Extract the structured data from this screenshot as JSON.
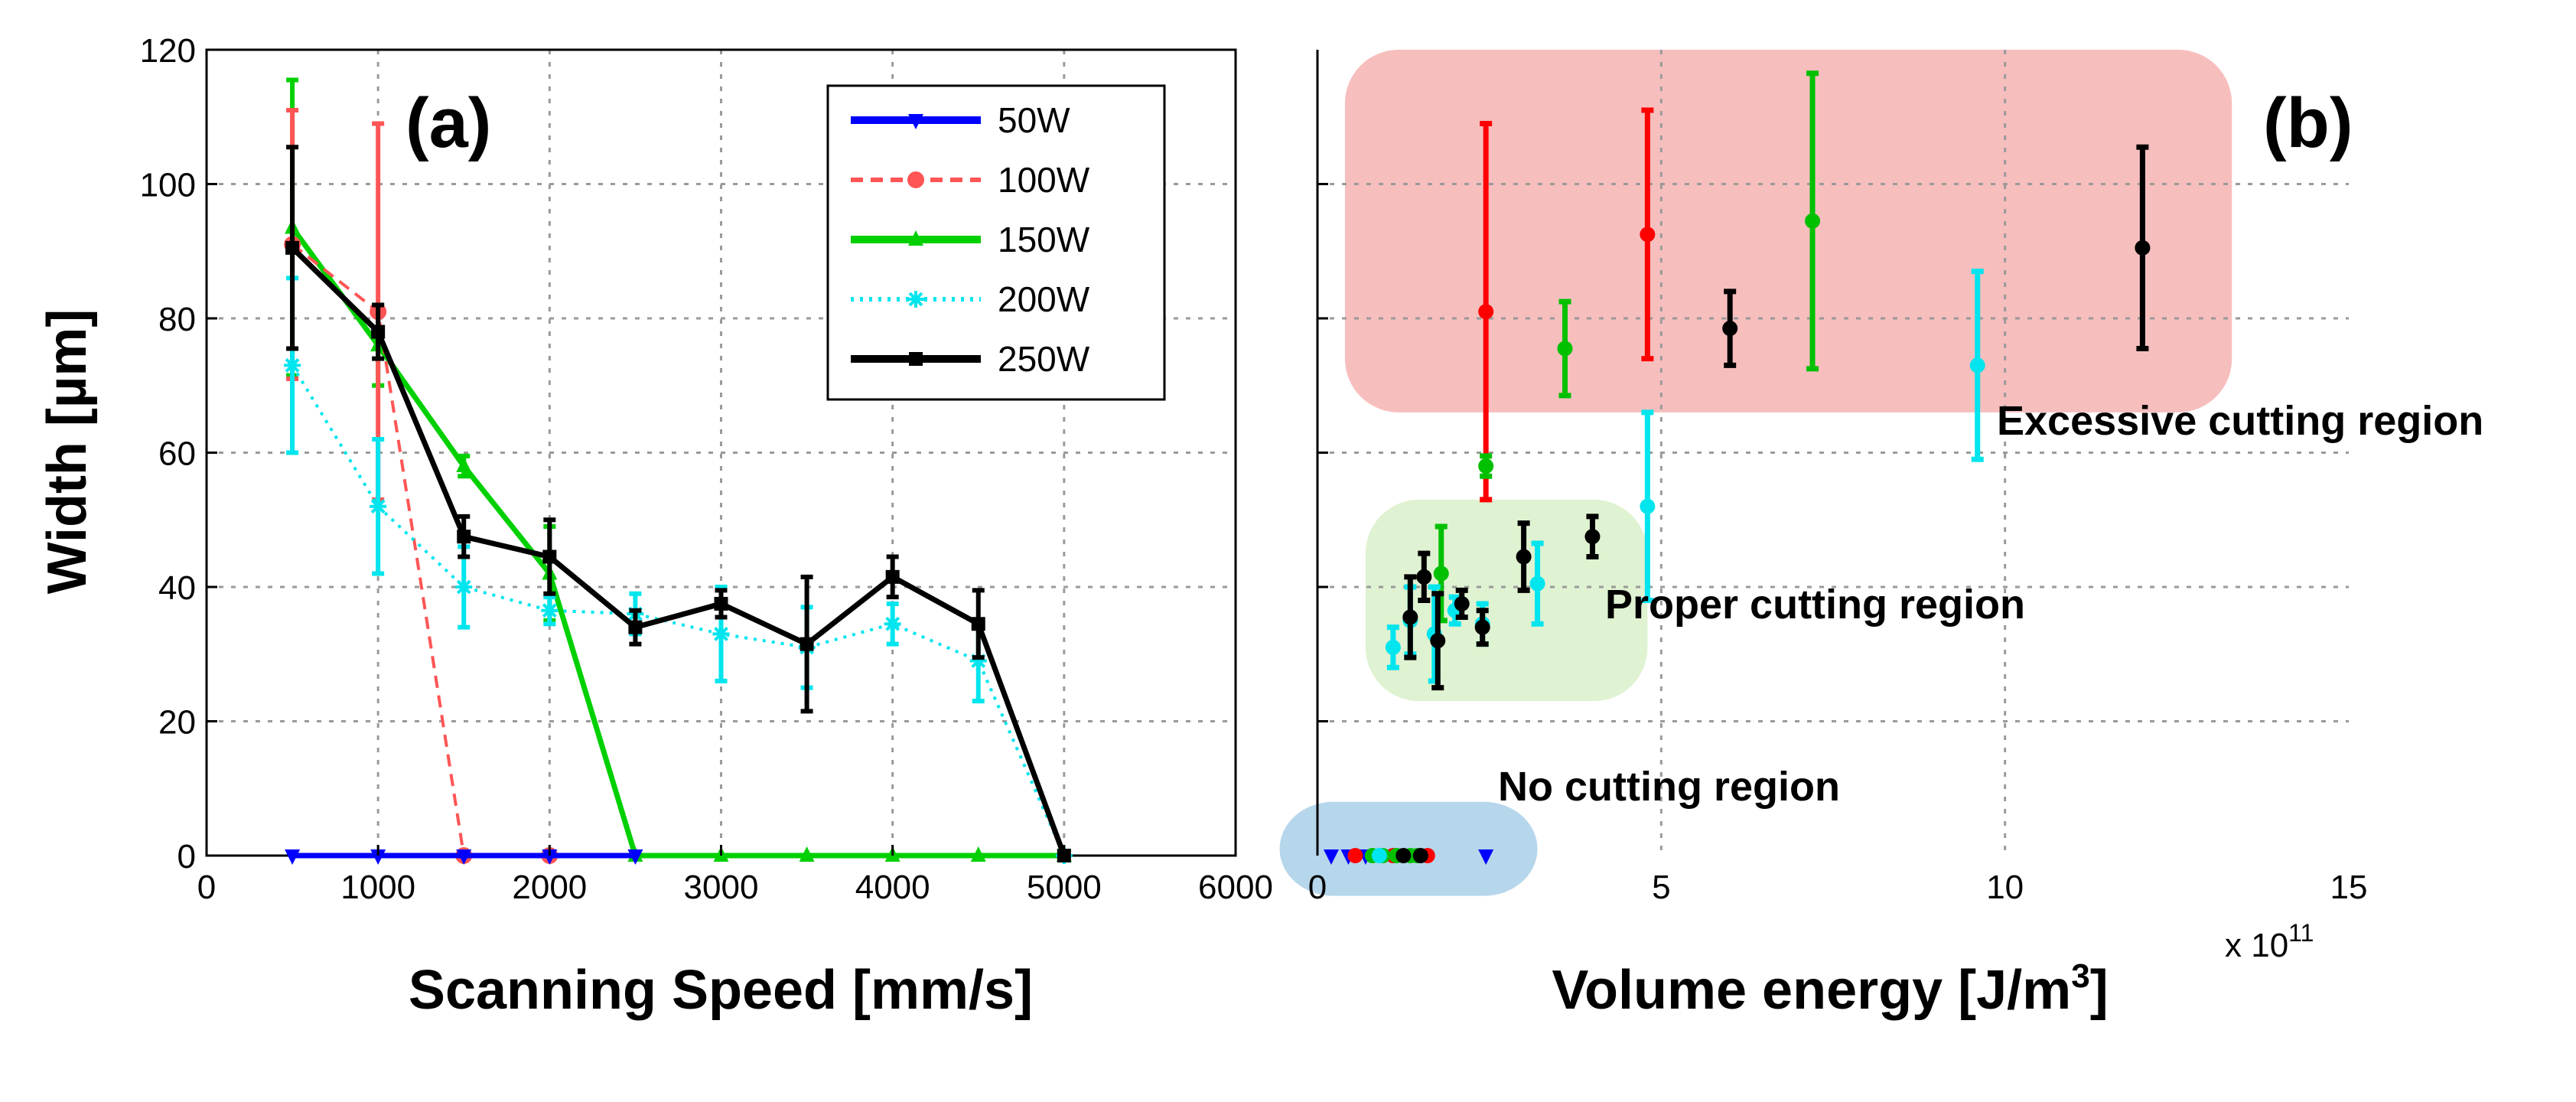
{
  "chart_data": [
    {
      "panel": "(a)",
      "type": "line",
      "xlabel": "Scanning Speed [mm/s]",
      "ylabel": "Width [µm]",
      "xlim": [
        0,
        6000
      ],
      "ylim": [
        0,
        120
      ],
      "xticks": [
        "0",
        "1000",
        "2000",
        "3000",
        "4000",
        "5000",
        "6000"
      ],
      "yticks": [
        "0",
        "20",
        "40",
        "60",
        "80",
        "100",
        "120"
      ],
      "grid": true,
      "legend": "top-right",
      "series": [
        {
          "name": "50W",
          "color": "#0000ff",
          "style": "solid",
          "marker": "triangle-down",
          "x": [
            500,
            1000,
            1500,
            2000,
            2500
          ],
          "y": [
            0,
            0,
            0,
            0,
            0
          ],
          "err": [
            0,
            0,
            0,
            0,
            0
          ]
        },
        {
          "name": "100W",
          "color": "#ff5555",
          "style": "dashed",
          "marker": "circle",
          "x": [
            500,
            1000,
            1500,
            2000
          ],
          "y": [
            91,
            81,
            0,
            0
          ],
          "err": [
            20,
            28,
            0,
            0
          ]
        },
        {
          "name": "150W",
          "color": "#00d000",
          "style": "solid",
          "marker": "triangle-up",
          "x": [
            500,
            1000,
            1500,
            2000,
            2500,
            3000,
            3500,
            4000,
            4500,
            5000
          ],
          "y": [
            93.5,
            76,
            58,
            42,
            0,
            0,
            0,
            0,
            0,
            0
          ],
          "err": [
            22,
            6,
            1.5,
            7,
            0,
            0,
            0,
            0,
            0,
            0
          ]
        },
        {
          "name": "200W",
          "color": "#00e5ee",
          "style": "dotted",
          "marker": "asterisk",
          "x": [
            500,
            1000,
            1500,
            2000,
            2500,
            3000,
            3500,
            4000,
            4500,
            5000
          ],
          "y": [
            73,
            52,
            40,
            36.5,
            36,
            33,
            31,
            34.5,
            29,
            0
          ],
          "err": [
            13,
            10,
            6,
            2,
            3,
            7,
            6,
            3,
            6,
            0
          ]
        },
        {
          "name": "250W",
          "color": "#000000",
          "style": "solid",
          "marker": "square",
          "x": [
            500,
            1000,
            1500,
            2000,
            2500,
            3000,
            3500,
            4000,
            4500,
            5000
          ],
          "y": [
            90.5,
            78,
            47.5,
            44.5,
            34,
            37.5,
            31.5,
            41.5,
            34.5,
            0
          ],
          "err": [
            15,
            4,
            3,
            5.5,
            2.5,
            2,
            10,
            3,
            5,
            0
          ]
        }
      ]
    },
    {
      "panel": "(b)",
      "type": "scatter",
      "xlabel_main": "Volume energy [J/m",
      "xlabel_sup": "3",
      "xlabel_end": "]",
      "x_multiplier_base": "x 10",
      "x_multiplier_exp": "11",
      "xlim": [
        0,
        15
      ],
      "ylim": [
        0,
        120
      ],
      "xticks": [
        "0",
        "5",
        "10",
        "15"
      ],
      "grid": true,
      "regions": [
        {
          "name": "Excessive cutting region",
          "color": "#f6b3b3",
          "x": [
            0.4,
            13.3
          ],
          "y": [
            66,
            120
          ]
        },
        {
          "name": "Proper cutting region",
          "color": "#d9f0c9",
          "x": [
            0.7,
            4.8
          ],
          "y": [
            23,
            53
          ]
        },
        {
          "name": "No cutting region",
          "color": "#a9cfe8",
          "x": [
            -0.55,
            3.2
          ],
          "y": [
            -6,
            8
          ]
        }
      ],
      "points": [
        {
          "x": 2.45,
          "y": 81,
          "err": 28,
          "color": "#ff0000"
        },
        {
          "x": 4.8,
          "y": 92.5,
          "err": 18.5,
          "color": "#ff0000"
        },
        {
          "x": 3.6,
          "y": 75.5,
          "err": 7,
          "color": "#00c000"
        },
        {
          "x": 7.2,
          "y": 94.5,
          "err": 22,
          "color": "#00c000"
        },
        {
          "x": 2.45,
          "y": 58,
          "err": 1.5,
          "color": "#00c000"
        },
        {
          "x": 1.8,
          "y": 42,
          "err": 7,
          "color": "#00c000"
        },
        {
          "x": 6.0,
          "y": 78.5,
          "err": 5.5,
          "color": "#000000"
        },
        {
          "x": 12.0,
          "y": 90.5,
          "err": 15,
          "color": "#000000"
        },
        {
          "x": 9.6,
          "y": 73,
          "err": 14,
          "color": "#00e5ee"
        },
        {
          "x": 4.8,
          "y": 52,
          "err": 14,
          "color": "#00e5ee"
        },
        {
          "x": 3.2,
          "y": 40.5,
          "err": 6,
          "color": "#00e5ee"
        },
        {
          "x": 1.1,
          "y": 31,
          "err": 3,
          "color": "#00e5ee"
        },
        {
          "x": 1.35,
          "y": 35,
          "err": 5,
          "color": "#00e5ee"
        },
        {
          "x": 1.7,
          "y": 33,
          "err": 7,
          "color": "#00e5ee"
        },
        {
          "x": 2.0,
          "y": 36.5,
          "err": 2,
          "color": "#00e5ee"
        },
        {
          "x": 2.4,
          "y": 34.5,
          "err": 3,
          "color": "#00e5ee"
        },
        {
          "x": 3.0,
          "y": 44.5,
          "err": 5,
          "color": "#000000"
        },
        {
          "x": 4.0,
          "y": 47.5,
          "err": 3,
          "color": "#000000"
        },
        {
          "x": 2.1,
          "y": 37.5,
          "err": 2,
          "color": "#000000"
        },
        {
          "x": 1.55,
          "y": 41.5,
          "err": 3.5,
          "color": "#000000"
        },
        {
          "x": 1.35,
          "y": 35.5,
          "err": 6,
          "color": "#000000"
        },
        {
          "x": 1.75,
          "y": 32,
          "err": 7,
          "color": "#000000"
        },
        {
          "x": 2.4,
          "y": 34,
          "err": 2.5,
          "color": "#000000"
        },
        {
          "x": 0.2,
          "y": 0,
          "err": 0,
          "color": "#0000ff"
        },
        {
          "x": 0.45,
          "y": 0,
          "err": 0,
          "color": "#0000ff"
        },
        {
          "x": 0.7,
          "y": 0,
          "err": 0,
          "color": "#0000ff"
        },
        {
          "x": 2.45,
          "y": 0,
          "err": 0,
          "color": "#0000ff"
        },
        {
          "x": 0.55,
          "y": 0,
          "err": 0,
          "color": "#ff0000"
        },
        {
          "x": 1.1,
          "y": 0,
          "err": 0,
          "color": "#ff0000"
        },
        {
          "x": 1.6,
          "y": 0,
          "err": 0,
          "color": "#ff0000"
        },
        {
          "x": 0.8,
          "y": 0,
          "err": 0,
          "color": "#00c000"
        },
        {
          "x": 0.95,
          "y": 0,
          "err": 0,
          "color": "#00c000"
        },
        {
          "x": 1.15,
          "y": 0,
          "err": 0,
          "color": "#00c000"
        },
        {
          "x": 1.35,
          "y": 0,
          "err": 0,
          "color": "#00c000"
        },
        {
          "x": 1.45,
          "y": 0,
          "err": 0,
          "color": "#00c000"
        },
        {
          "x": 0.9,
          "y": 0,
          "err": 0,
          "color": "#00e5ee"
        },
        {
          "x": 1.25,
          "y": 0,
          "err": 0,
          "color": "#000000"
        },
        {
          "x": 1.5,
          "y": 0,
          "err": 0,
          "color": "#000000"
        }
      ]
    }
  ]
}
